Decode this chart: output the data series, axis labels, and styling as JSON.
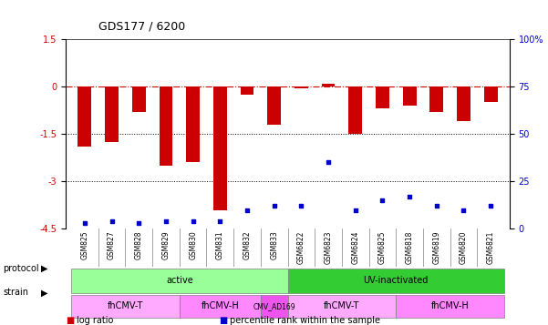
{
  "title": "GDS177 / 6200",
  "samples": [
    "GSM825",
    "GSM827",
    "GSM828",
    "GSM829",
    "GSM830",
    "GSM831",
    "GSM832",
    "GSM833",
    "GSM6822",
    "GSM6823",
    "GSM6824",
    "GSM6825",
    "GSM6818",
    "GSM6819",
    "GSM6820",
    "GSM6821"
  ],
  "log_ratio": [
    -1.9,
    -1.75,
    -0.8,
    -2.5,
    -2.4,
    -3.9,
    -0.25,
    -1.2,
    -0.05,
    0.1,
    -1.5,
    -0.7,
    -0.6,
    -0.8,
    -1.1,
    -0.5
  ],
  "pct_rank": [
    3,
    4,
    3,
    4,
    4,
    4,
    10,
    12,
    12,
    35,
    10,
    15,
    17,
    12,
    10,
    12
  ],
  "ylim_left": [
    -4.5,
    1.5
  ],
  "ylim_right": [
    0,
    100
  ],
  "yticks_left": [
    -4.5,
    -3.0,
    -1.5,
    0.0,
    1.5
  ],
  "yticks_right": [
    0,
    25,
    50,
    75,
    100
  ],
  "ytick_labels_left": [
    "-4.5",
    "-3",
    "-1.5",
    "0",
    "1.5"
  ],
  "ytick_labels_right": [
    "0",
    "25",
    "50",
    "75",
    "100%"
  ],
  "hlines": [
    -1.5,
    -3.0
  ],
  "bar_color": "#cc0000",
  "dot_color": "#0000cc",
  "dashed_color": "#cc0000",
  "protocol_groups": [
    {
      "label": "active",
      "start": 0,
      "end": 8,
      "color": "#99ff99"
    },
    {
      "label": "UV-inactivated",
      "start": 8,
      "end": 16,
      "color": "#33cc33"
    }
  ],
  "strain_groups": [
    {
      "label": "fhCMV-T",
      "start": 0,
      "end": 4,
      "color": "#ffaaff"
    },
    {
      "label": "fhCMV-H",
      "start": 4,
      "end": 7,
      "color": "#ff88ff"
    },
    {
      "label": "CMV_AD169",
      "start": 7,
      "end": 8,
      "color": "#ee55ee"
    },
    {
      "label": "fhCMV-T",
      "start": 8,
      "end": 12,
      "color": "#ffaaff"
    },
    {
      "label": "fhCMV-H",
      "start": 12,
      "end": 16,
      "color": "#ff88ff"
    }
  ],
  "legend_items": [
    {
      "label": "log ratio",
      "color": "#cc0000"
    },
    {
      "label": "percentile rank within the sample",
      "color": "#0000cc"
    }
  ],
  "bar_width": 0.5
}
